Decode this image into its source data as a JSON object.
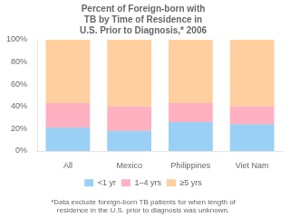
{
  "chart_data": {
    "type": "bar",
    "title": [
      "Percent of Foreign-born with",
      "TB by Time of Residence in",
      "U.S. Prior to Diagnosis,* 2006"
    ],
    "categories": [
      "All",
      "Mexico",
      "Philippines",
      "Viet Nam"
    ],
    "series": [
      {
        "name": "<1 yr",
        "values": [
          21,
          18,
          26,
          24
        ]
      },
      {
        "name": "1–4 yrs",
        "values": [
          22,
          22,
          17,
          16
        ]
      },
      {
        "name": "≥5 yrs",
        "values": [
          57,
          60,
          57,
          60
        ]
      }
    ],
    "stacked": true,
    "ylim": [
      0,
      100
    ],
    "yticks": [
      {
        "value": 0,
        "label": "0%"
      },
      {
        "value": 20,
        "label": "20%"
      },
      {
        "value": 40,
        "label": "40%"
      },
      {
        "value": 60,
        "label": "60%"
      },
      {
        "value": 80,
        "label": "80%"
      },
      {
        "value": 100,
        "label": "100%"
      }
    ],
    "grid": false,
    "legend": "bottom",
    "footnote": [
      "*Data exclude foreign-born TB patients for when length of",
      "residence in the U.S. prior to diagnosis was unknown."
    ]
  }
}
